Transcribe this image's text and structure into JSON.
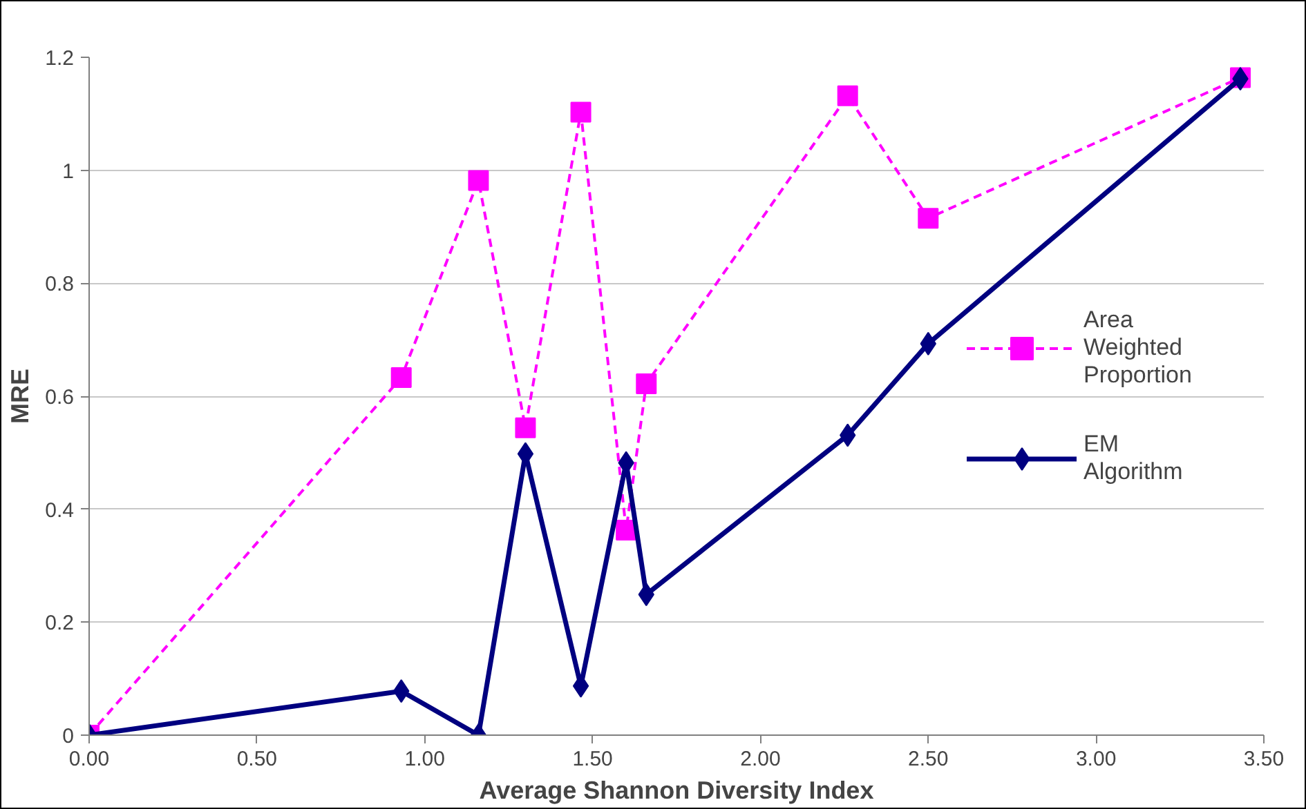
{
  "chart_data": {
    "type": "line",
    "xlabel": "Average Shannon Diversity Index",
    "ylabel": "MRE",
    "xlim": [
      0,
      3.5
    ],
    "xticks": [
      {
        "value": 0,
        "label": "0.00"
      },
      {
        "value": 0.5,
        "label": "0.50"
      },
      {
        "value": 1,
        "label": "1.00"
      },
      {
        "value": 1.5,
        "label": "1.50"
      },
      {
        "value": 2,
        "label": "2.00"
      },
      {
        "value": 2.5,
        "label": "2.50"
      },
      {
        "value": 3,
        "label": "3.00"
      },
      {
        "value": 3.5,
        "label": "3.50"
      }
    ],
    "ylim": [
      0,
      1.2
    ],
    "yticks": [
      0,
      0.2,
      0.4,
      0.6,
      0.8,
      1,
      1.2
    ],
    "x": [
      0,
      0.93,
      1.16,
      1.3,
      1.465,
      1.6,
      1.66,
      2.26,
      2.5,
      3.43
    ],
    "grid": "y",
    "legend": "right",
    "series": [
      {
        "name": "Area Weighted Proportion",
        "color": "#ff00ff",
        "marker": "square",
        "line_style": "dashed",
        "values": [
          0,
          0.633,
          0.982,
          0.544,
          1.103,
          0.363,
          0.622,
          1.132,
          0.915,
          1.164
        ]
      },
      {
        "name": "EM Algorithm",
        "color": "#000080",
        "marker": "diamond",
        "line_style": "solid",
        "values": [
          0,
          0.078,
          0,
          0.498,
          0.087,
          0.482,
          0.249,
          0.531,
          0.693,
          1.162
        ]
      }
    ]
  }
}
